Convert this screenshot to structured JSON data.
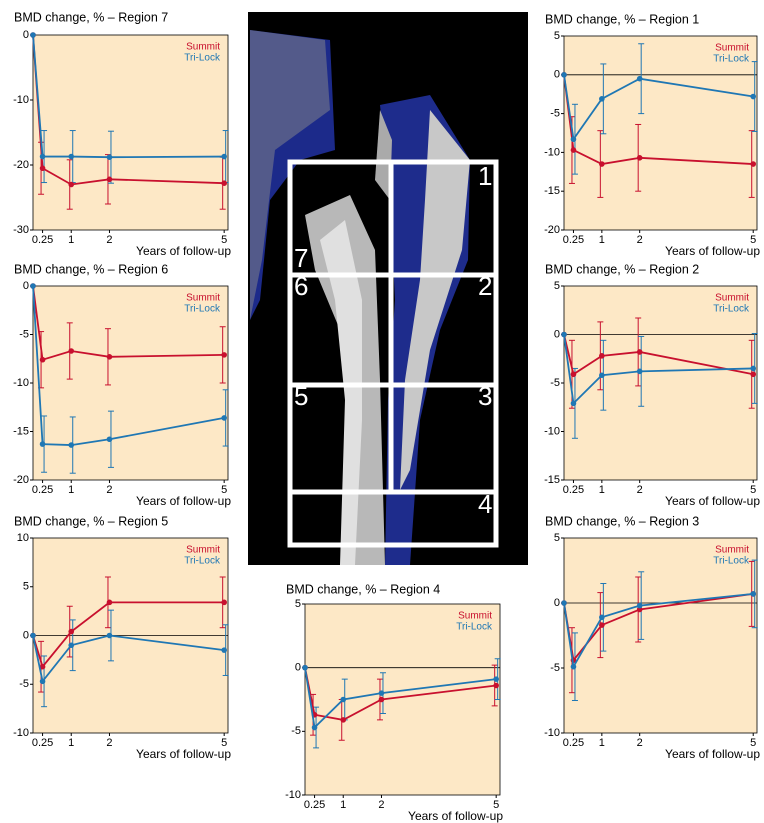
{
  "chart_data": [
    {
      "type": "line",
      "title": "BMD change, % – Region 7",
      "xlabel": "Years of follow-up",
      "x": [
        0,
        0.25,
        1,
        2,
        5
      ],
      "xlim": [
        0,
        5.1
      ],
      "xticks": [
        0.25,
        1,
        2,
        5
      ],
      "ylim": [
        -30,
        0
      ],
      "yticks": [
        0,
        -10,
        -20,
        -30
      ],
      "background": "#fde8c6",
      "legend": "top-right",
      "series": [
        {
          "name": "Summit",
          "color": "#c8102e",
          "values": [
            0,
            -20.5,
            -23,
            -22.2,
            -22.8
          ],
          "errors": [
            null,
            4,
            3.8,
            3.8,
            4
          ]
        },
        {
          "name": "Tri-Lock",
          "color": "#1f77b4",
          "values": [
            0,
            -18.7,
            -18.7,
            -18.8,
            -18.7
          ],
          "errors": [
            null,
            4,
            4,
            4,
            4
          ]
        }
      ]
    },
    {
      "type": "line",
      "title": "BMD change, % – Region 6",
      "xlabel": "Years of follow-up",
      "x": [
        0,
        0.25,
        1,
        2,
        5
      ],
      "xlim": [
        0,
        5.1
      ],
      "xticks": [
        0.25,
        1,
        2,
        5
      ],
      "ylim": [
        -20,
        0
      ],
      "yticks": [
        0,
        -5,
        -10,
        -15,
        -20
      ],
      "background": "#fde8c6",
      "legend": "top-right",
      "series": [
        {
          "name": "Summit",
          "color": "#c8102e",
          "values": [
            0,
            -7.6,
            -6.7,
            -7.3,
            -7.1
          ],
          "errors": [
            null,
            2.9,
            2.9,
            2.9,
            2.9
          ]
        },
        {
          "name": "Tri-Lock",
          "color": "#1f77b4",
          "values": [
            0,
            -16.3,
            -16.4,
            -15.8,
            -13.6
          ],
          "errors": [
            null,
            2.9,
            2.9,
            2.9,
            2.9
          ]
        }
      ]
    },
    {
      "type": "line",
      "title": "BMD change, % – Region 5",
      "xlabel": "Years of follow-up",
      "x": [
        0,
        0.25,
        1,
        2,
        5
      ],
      "xlim": [
        0,
        5.1
      ],
      "xticks": [
        0.25,
        1,
        2,
        5
      ],
      "ylim": [
        -10,
        10
      ],
      "yticks": [
        10,
        5,
        0,
        -5,
        -10
      ],
      "background": "#fde8c6",
      "legend": "top-right",
      "series": [
        {
          "name": "Summit",
          "color": "#c8102e",
          "values": [
            0,
            -3.2,
            0.4,
            3.4,
            3.4
          ],
          "errors": [
            null,
            2.6,
            2.6,
            2.6,
            2.6
          ]
        },
        {
          "name": "Tri-Lock",
          "color": "#1f77b4",
          "values": [
            0,
            -4.7,
            -1,
            0,
            -1.5
          ],
          "errors": [
            null,
            2.6,
            2.6,
            2.6,
            2.6
          ]
        }
      ]
    },
    {
      "type": "line",
      "title": "BMD change, % – Region 4",
      "xlabel": "Years of follow-up",
      "x": [
        0,
        0.25,
        1,
        2,
        5
      ],
      "xlim": [
        0,
        5.1
      ],
      "xticks": [
        0.25,
        1,
        2,
        5
      ],
      "ylim": [
        -10,
        5
      ],
      "yticks": [
        5,
        0,
        -5,
        -10
      ],
      "background": "#fde8c6",
      "legend": "top-right",
      "series": [
        {
          "name": "Summit",
          "color": "#c8102e",
          "values": [
            0,
            -3.7,
            -4.1,
            -2.5,
            -1.4
          ],
          "errors": [
            null,
            1.6,
            1.6,
            1.6,
            1.6
          ]
        },
        {
          "name": "Tri-Lock",
          "color": "#1f77b4",
          "values": [
            0,
            -4.7,
            -2.5,
            -2,
            -0.9
          ],
          "errors": [
            null,
            1.6,
            1.6,
            1.6,
            1.6
          ]
        }
      ]
    },
    {
      "type": "line",
      "title": "BMD change, % – Region 1",
      "xlabel": "Years of follow-up",
      "x": [
        0,
        0.25,
        1,
        2,
        5
      ],
      "xlim": [
        0,
        5.1
      ],
      "xticks": [
        0.25,
        1,
        2,
        5
      ],
      "ylim": [
        -20,
        5
      ],
      "yticks": [
        5,
        0,
        -5,
        -10,
        -15,
        -20
      ],
      "background": "#fde8c6",
      "legend": "top-right",
      "series": [
        {
          "name": "Summit",
          "color": "#c8102e",
          "values": [
            0,
            -9.7,
            -11.5,
            -10.7,
            -11.5
          ],
          "errors": [
            null,
            4.3,
            4.3,
            4.3,
            4.3
          ]
        },
        {
          "name": "Tri-Lock",
          "color": "#1f77b4",
          "values": [
            0,
            -8.3,
            -3.1,
            -0.5,
            -2.8
          ],
          "errors": [
            null,
            4.5,
            4.5,
            4.5,
            4.5
          ]
        }
      ]
    },
    {
      "type": "line",
      "title": "BMD change, % – Region 2",
      "xlabel": "Years of follow-up",
      "x": [
        0,
        0.25,
        1,
        2,
        5
      ],
      "xlim": [
        0,
        5.1
      ],
      "xticks": [
        0.25,
        1,
        2,
        5
      ],
      "ylim": [
        -15,
        5
      ],
      "yticks": [
        5,
        0,
        -5,
        -10,
        -15
      ],
      "background": "#fde8c6",
      "legend": "top-right",
      "series": [
        {
          "name": "Summit",
          "color": "#c8102e",
          "values": [
            0,
            -4.1,
            -2.2,
            -1.8,
            -4.1
          ],
          "errors": [
            null,
            3.5,
            3.5,
            3.5,
            3.5
          ]
        },
        {
          "name": "Tri-Lock",
          "color": "#1f77b4",
          "values": [
            0,
            -7.1,
            -4.2,
            -3.8,
            -3.5
          ],
          "errors": [
            null,
            3.6,
            3.6,
            3.6,
            3.6
          ]
        }
      ]
    },
    {
      "type": "line",
      "title": "BMD change, % – Region 3",
      "xlabel": "Years of follow-up",
      "x": [
        0,
        0.25,
        1,
        2,
        5
      ],
      "xlim": [
        0,
        5.1
      ],
      "xticks": [
        0.25,
        1,
        2,
        5
      ],
      "ylim": [
        -10,
        5
      ],
      "yticks": [
        5,
        0,
        -5,
        -10
      ],
      "background": "#fde8c6",
      "legend": "top-right",
      "series": [
        {
          "name": "Summit",
          "color": "#c8102e",
          "values": [
            0,
            -4.4,
            -1.7,
            -0.5,
            0.7
          ],
          "errors": [
            null,
            2.5,
            2.5,
            2.5,
            2.5
          ]
        },
        {
          "name": "Tri-Lock",
          "color": "#1f77b4",
          "values": [
            0,
            -4.9,
            -1.1,
            -0.2,
            0.7
          ],
          "errors": [
            null,
            2.6,
            2.6,
            2.6,
            2.6
          ]
        }
      ]
    }
  ],
  "image": {
    "zone_labels": [
      "1",
      "2",
      "3",
      "4",
      "5",
      "6",
      "7"
    ]
  }
}
